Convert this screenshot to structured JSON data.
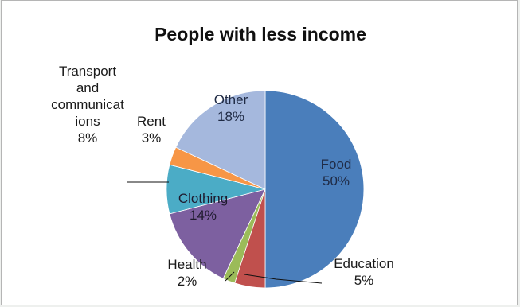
{
  "chart_data": {
    "type": "pie",
    "title": "People with less income",
    "unit": "%",
    "slices": [
      {
        "label": "Food",
        "value": 50,
        "color": "#4a7ebb",
        "label_lines": [
          "Food",
          "50%"
        ],
        "label_color": "#1f2a44"
      },
      {
        "label": "Education",
        "value": 5,
        "color": "#c0504d",
        "label_lines": [
          "Education",
          "5%"
        ],
        "label_color": "#1a1a1a"
      },
      {
        "label": "Health",
        "value": 2,
        "color": "#9bbb59",
        "label_lines": [
          "Health",
          "2%"
        ],
        "label_color": "#1a1a1a"
      },
      {
        "label": "Clothing",
        "value": 14,
        "color": "#7d60a0",
        "label_lines": [
          "Clothing",
          "14%"
        ],
        "label_color": "#1f1a2e"
      },
      {
        "label": "Transport and communications",
        "value": 8,
        "color": "#4bacc6",
        "label_lines": [
          "Transport",
          "and",
          "communicat",
          "ions",
          "8%"
        ],
        "label_color": "#1a1a1a"
      },
      {
        "label": "Rent",
        "value": 3,
        "color": "#f79646",
        "label_lines": [
          "Rent",
          "3%"
        ],
        "label_color": "#1a1a1a"
      },
      {
        "label": "Other",
        "value": 18,
        "color": "#a5b8dd",
        "label_lines": [
          "Other",
          "18%"
        ],
        "label_color": "#1f2a44"
      }
    ],
    "legend": "none",
    "start_angle_deg": 0,
    "direction": "clockwise"
  }
}
